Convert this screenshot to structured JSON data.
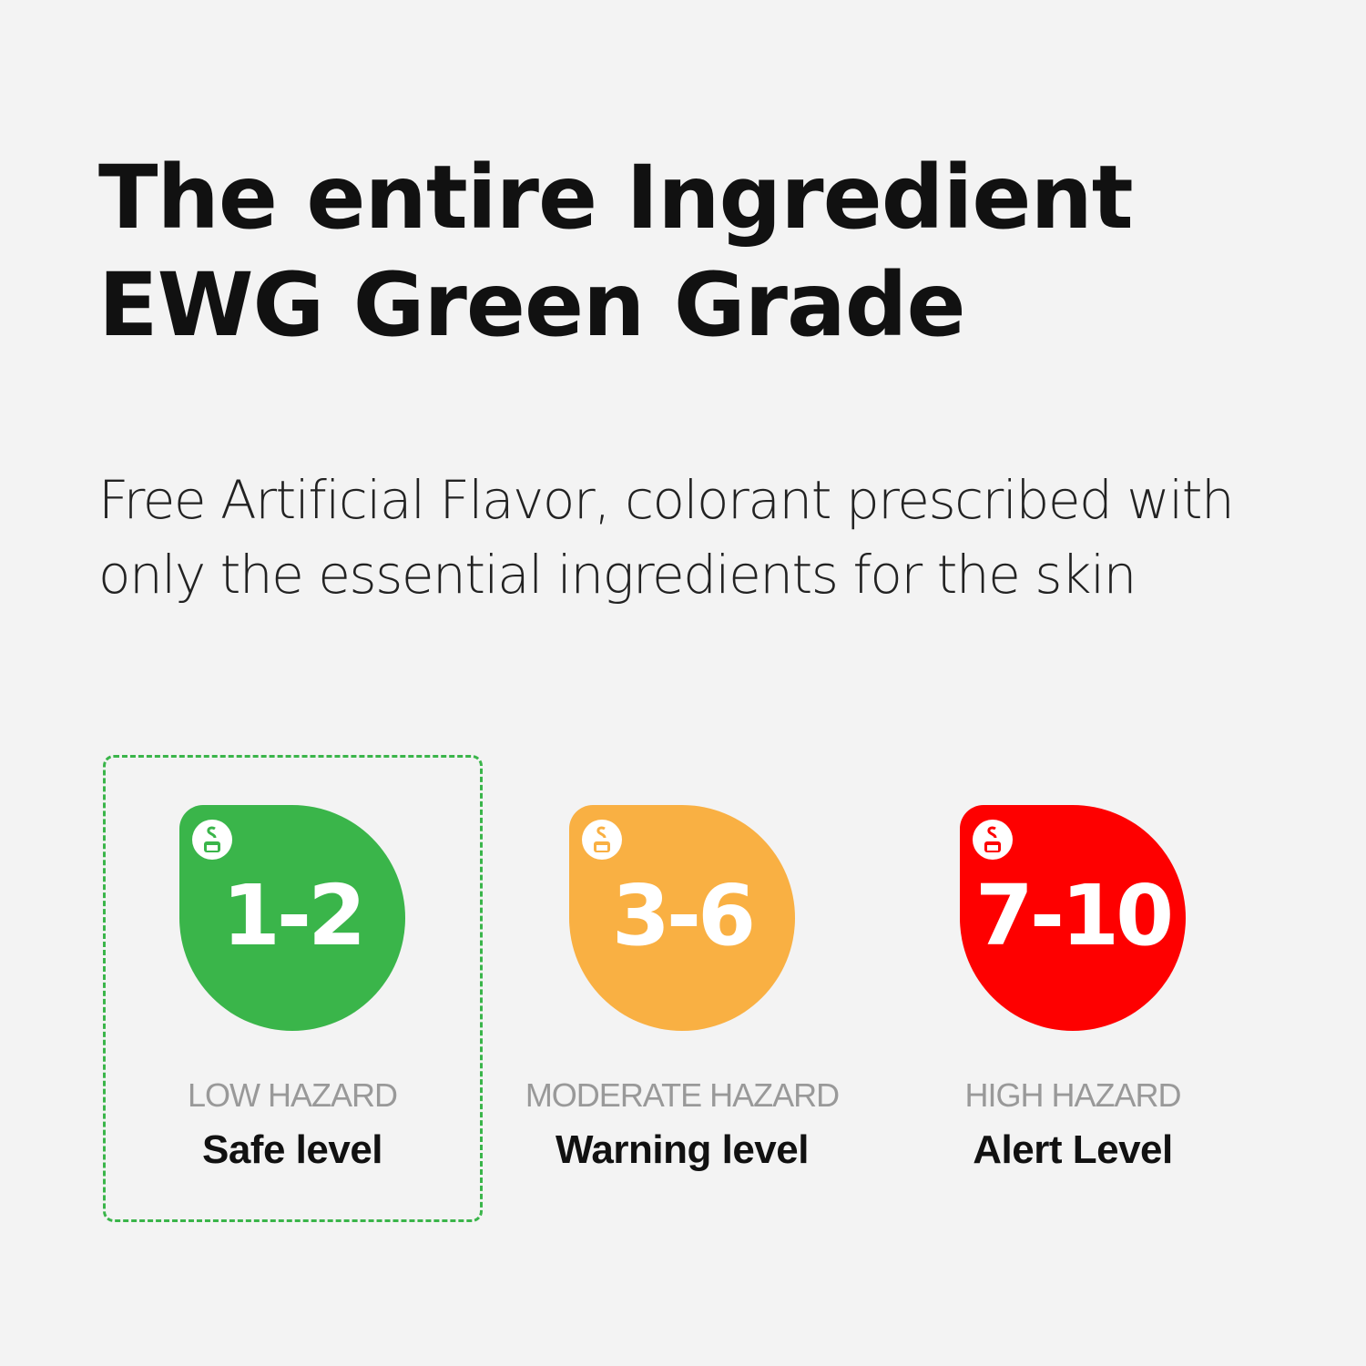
{
  "title": {
    "line1": "The entire Ingredient",
    "line2": "EWG Green Grade"
  },
  "subtitle": {
    "line1": "Free Artificial Flavor, colorant prescribed with",
    "line2": "only the essential ingredients for the skin"
  },
  "grades": [
    {
      "range": "1-2",
      "hazard": "LOW HAZARD",
      "level": "Safe level",
      "color": "#3ab54a",
      "selected": true,
      "icon": "skin-safe-icon"
    },
    {
      "range": "3-6",
      "hazard": "MODERATE HAZARD",
      "level": "Warning level",
      "color": "#f9b043",
      "selected": false,
      "icon": "skin-safe-icon"
    },
    {
      "range": "7-10",
      "hazard": "HIGH HAZARD",
      "level": "Alert Level",
      "color": "#fe0000",
      "selected": false,
      "icon": "skin-safe-icon"
    }
  ]
}
